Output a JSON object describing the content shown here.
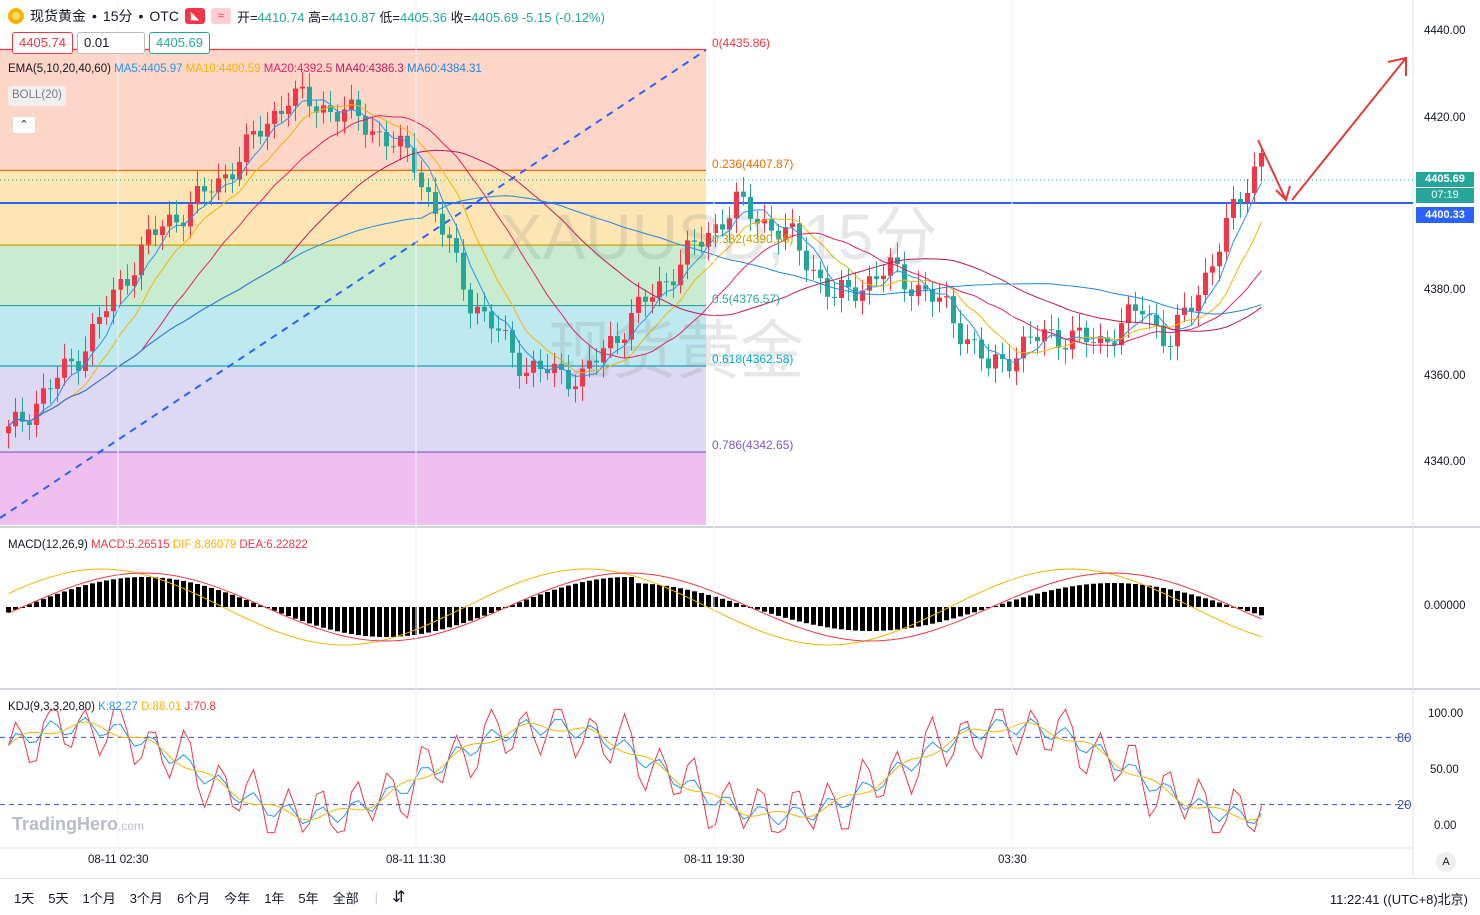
{
  "header": {
    "symbol": "现货黄金",
    "interval": "15分",
    "exchange": "OTC",
    "separator": "•",
    "open_label": "开=",
    "open": "4410.74",
    "high_label": "高=",
    "high": "4410.87",
    "low_label": "低=",
    "low": "4405.36",
    "close_label": "收=",
    "close": "4405.69",
    "change": "-5.15",
    "change_pct": "(-0.12%)",
    "flag_icon": "flag-icon",
    "wave_icon": "wave-icon"
  },
  "price_boxes": {
    "sell": "4405.74",
    "qty": "0.01",
    "buy": "4405.69"
  },
  "indicators": {
    "ema_name": "EMA(5,10,20,40,60)",
    "ma5": "MA5:4405.97",
    "ma10": "MA10:4400.59",
    "ma20": "MA20:4392.5",
    "ma40": "MA40:4386.3",
    "ma60": "MA60:4384.31",
    "boll": "BOLL(20)",
    "macd_name": "MACD(12,26,9)",
    "macd_val": "MACD:5.26515",
    "dif_val": "DIF:8.86079",
    "dea_val": "DEA:6.22822",
    "kdj_name": "KDJ(9,3,3,20,80)",
    "k_val": "K:82.27",
    "d_val": "D:88.01",
    "j_val": "J:70.8"
  },
  "fib_labels": {
    "l0": "0(4435.86)",
    "l236": "0.236(4407.87)",
    "l382": "0.382(4390.56)",
    "l5": "0.5(4376.57)",
    "l618": "0.618(4362.58)",
    "l786": "0.786(4342.65)"
  },
  "price_axis": [
    "4440.00",
    "4420.00",
    "4400.00",
    "4380.00",
    "4360.00",
    "4340.00"
  ],
  "current_price": "4405.69",
  "countdown": "07:19",
  "hline_price": "4400.33",
  "macd_axis": "0.00000",
  "kdj_axis": [
    "100.00",
    "50.00",
    "0.00"
  ],
  "kdj_levels": [
    "80",
    "20"
  ],
  "time_axis": [
    "08-11 02:30",
    "08-11 11:30",
    "08-11 19:30",
    "03:30"
  ],
  "watermark": {
    "ticker": "XAUUSD, 15分",
    "name": "现货黄金"
  },
  "logo": {
    "name": "TradingHero",
    "suffix": ".com"
  },
  "auto_label": "A",
  "bottom": {
    "ranges": [
      "1天",
      "5天",
      "1个月",
      "3个月",
      "6个月",
      "今年",
      "1年",
      "5年",
      "全部"
    ],
    "compare_icon": "calendar-compare-icon",
    "clock": "11:22:41 ((UTC+8)北京)"
  },
  "colors": {
    "up": "#f23645",
    "down": "#26a69a",
    "hline": "#2962ff"
  }
}
